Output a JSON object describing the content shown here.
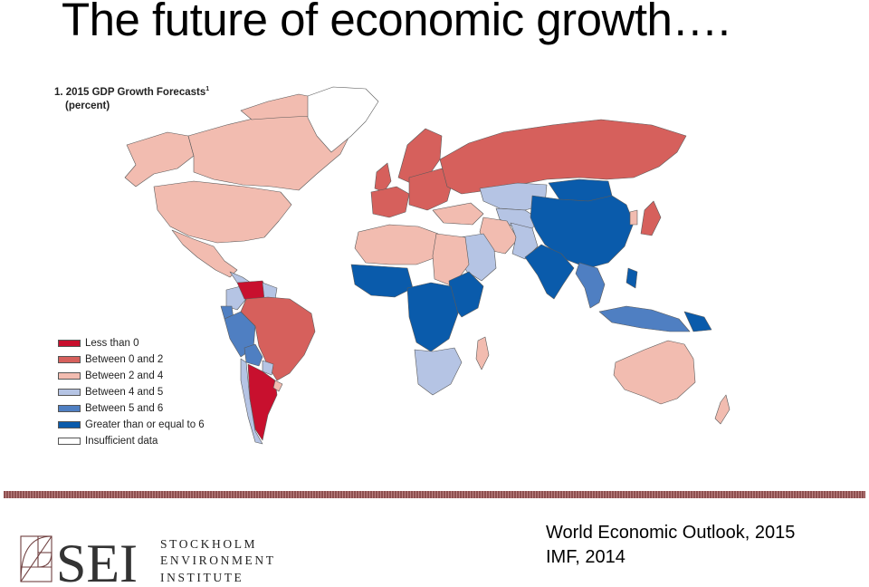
{
  "slide": {
    "title": "The future of economic growth…."
  },
  "map": {
    "heading": "1. 2015 GDP Growth Forecasts",
    "footnote_marker": "1",
    "units": "(percent)"
  },
  "legend": {
    "items": [
      {
        "label": "Less than 0",
        "color": "#c8102e"
      },
      {
        "label": "Between 0 and 2",
        "color": "#d6605c"
      },
      {
        "label": "Between 2 and 4",
        "color": "#f2bcb0"
      },
      {
        "label": "Between 4 and 5",
        "color": "#b5c4e4"
      },
      {
        "label": "Between 5 and 6",
        "color": "#4f7fc2"
      },
      {
        "label": "Greater than or equal to 6",
        "color": "#0a5bab"
      },
      {
        "label": "Insufficient data",
        "color": "#ffffff"
      }
    ]
  },
  "logo": {
    "letters": "SEI",
    "line1": "STOCKHOLM",
    "line2": "ENVIRONMENT",
    "line3": "INSTITUTE"
  },
  "source": {
    "line1": "World Economic Outlook, 2015",
    "line2": "IMF, 2014"
  }
}
